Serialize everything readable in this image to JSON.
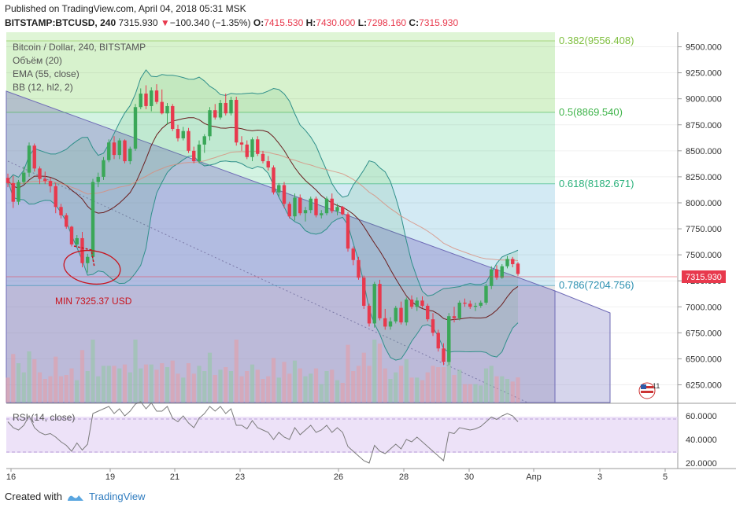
{
  "header": {
    "published": "Published on TradingView.com, April 04, 2018 05:31 MSK",
    "symbol": "BITSTAMP:BTCUSD, 240",
    "last": "7315.930",
    "arrow": "▼",
    "change": "−100.340 (−1.35%)",
    "o_label": "O:",
    "o": "7415.530",
    "h_label": "H:",
    "h": "7430.000",
    "l_label": "L:",
    "l": "7298.160",
    "c_label": "C:",
    "c": "7315.930"
  },
  "legend": [
    "Bitcoin / Dollar, 240, BITSTAMP",
    "Объём (20)",
    "EMA (55, close)",
    "BB (12, hl2, 2)"
  ],
  "rsi_label": "RSI (14, close)",
  "annotation": "MIN 7325.37 USD",
  "price_badge": "7315.930",
  "event_badge": "11",
  "footer": {
    "created_with": "Created with",
    "brand": "TradingView"
  },
  "colors": {
    "up": "#3aa758",
    "down": "#e8394d",
    "accent": "#2e7bbf"
  },
  "chart_data": [
    {
      "type": "candlestick",
      "title": "Bitcoin / Dollar, 240, BITSTAMP",
      "y_axis_ticks": [
        "9500.000",
        "9250.000",
        "9000.000",
        "8750.000",
        "8500.000",
        "8250.000",
        "8000.000",
        "7750.000",
        "7500.000",
        "7250.000",
        "7000.000",
        "6750.000",
        "6500.000",
        "6250.000"
      ],
      "x_axis_ticks": [
        "16",
        "19",
        "21",
        "23",
        "26",
        "28",
        "30",
        "Апр",
        "3",
        "5"
      ],
      "ylim": [
        6080,
        9640
      ],
      "fib_levels": [
        {
          "label": "0.382(9556.408)",
          "value": 9556.408
        },
        {
          "label": "0.5(8869.540)",
          "value": 8869.54
        },
        {
          "label": "0.618(8182.671)",
          "value": 8182.671
        },
        {
          "label": "0.786(7204.756)",
          "value": 7204.756
        }
      ],
      "candles": [
        [
          8240,
          8280,
          8150,
          8190
        ],
        [
          8190,
          8260,
          7950,
          8010
        ],
        [
          8010,
          8220,
          7980,
          8200
        ],
        [
          8200,
          8350,
          8180,
          8290
        ],
        [
          8290,
          8580,
          8250,
          8550
        ],
        [
          8550,
          8570,
          8300,
          8330
        ],
        [
          8330,
          8350,
          8180,
          8230
        ],
        [
          8230,
          8300,
          8180,
          8210
        ],
        [
          8210,
          8240,
          8100,
          8160
        ],
        [
          8160,
          8190,
          7900,
          7960
        ],
        [
          7960,
          7990,
          7850,
          7880
        ],
        [
          7880,
          7900,
          7750,
          7770
        ],
        [
          7770,
          7780,
          7580,
          7600
        ],
        [
          7600,
          7690,
          7580,
          7660
        ],
        [
          7660,
          7720,
          7380,
          7420
        ],
        [
          7420,
          7510,
          7330,
          7480
        ],
        [
          7480,
          8230,
          7450,
          8200
        ],
        [
          8200,
          8290,
          8150,
          8250
        ],
        [
          8250,
          8440,
          8220,
          8410
        ],
        [
          8410,
          8610,
          8390,
          8580
        ],
        [
          8580,
          8640,
          8420,
          8460
        ],
        [
          8460,
          8620,
          8420,
          8600
        ],
        [
          8600,
          8610,
          8380,
          8400
        ],
        [
          8400,
          8540,
          8370,
          8520
        ],
        [
          8520,
          8950,
          8500,
          8920
        ],
        [
          8920,
          9100,
          8900,
          9050
        ],
        [
          9050,
          9130,
          8900,
          8930
        ],
        [
          8930,
          9110,
          8880,
          9080
        ],
        [
          9080,
          9140,
          8950,
          8970
        ],
        [
          8970,
          9090,
          8850,
          8860
        ],
        [
          8860,
          8960,
          8750,
          8930
        ],
        [
          8930,
          8950,
          8690,
          8710
        ],
        [
          8710,
          8750,
          8590,
          8620
        ],
        [
          8620,
          8730,
          8600,
          8690
        ],
        [
          8690,
          8720,
          8480,
          8500
        ],
        [
          8500,
          8540,
          8380,
          8400
        ],
        [
          8400,
          8600,
          8380,
          8560
        ],
        [
          8560,
          8660,
          8480,
          8640
        ],
        [
          8640,
          8920,
          8600,
          8890
        ],
        [
          8890,
          8950,
          8800,
          8820
        ],
        [
          8820,
          8990,
          8800,
          8960
        ],
        [
          8960,
          9050,
          8840,
          8860
        ],
        [
          8860,
          9020,
          8840,
          8990
        ],
        [
          8990,
          9020,
          8550,
          8580
        ],
        [
          8580,
          8640,
          8500,
          8560
        ],
        [
          8560,
          8600,
          8420,
          8440
        ],
        [
          8440,
          8630,
          8400,
          8610
        ],
        [
          8610,
          8640,
          8450,
          8470
        ],
        [
          8470,
          8500,
          8380,
          8400
        ],
        [
          8400,
          8450,
          8310,
          8340
        ],
        [
          8340,
          8360,
          8080,
          8100
        ],
        [
          8100,
          8190,
          8060,
          8170
        ],
        [
          8170,
          8200,
          7950,
          7990
        ],
        [
          7990,
          8010,
          7850,
          7870
        ],
        [
          7870,
          8090,
          7830,
          8050
        ],
        [
          8050,
          8080,
          7880,
          7900
        ],
        [
          7900,
          7960,
          7820,
          7930
        ],
        [
          7930,
          8060,
          7900,
          8040
        ],
        [
          8040,
          8060,
          7860,
          7880
        ],
        [
          7880,
          7930,
          7850,
          7900
        ],
        [
          7900,
          8060,
          7880,
          8040
        ],
        [
          8040,
          8090,
          7900,
          7920
        ],
        [
          7920,
          7990,
          7880,
          7960
        ],
        [
          7960,
          7970,
          7880,
          7890
        ],
        [
          7890,
          7910,
          7530,
          7560
        ],
        [
          7560,
          7580,
          7400,
          7450
        ],
        [
          7450,
          7480,
          7260,
          7280
        ],
        [
          7280,
          7300,
          6980,
          7010
        ],
        [
          7010,
          7030,
          6810,
          6840
        ],
        [
          6840,
          7240,
          6800,
          7220
        ],
        [
          7220,
          7260,
          6870,
          6890
        ],
        [
          6890,
          6980,
          6780,
          6810
        ],
        [
          6810,
          6900,
          6780,
          6860
        ],
        [
          6860,
          7010,
          6840,
          6990
        ],
        [
          6990,
          7050,
          6830,
          6850
        ],
        [
          6850,
          7090,
          6820,
          7070
        ],
        [
          7070,
          7110,
          6980,
          7000
        ],
        [
          7000,
          7090,
          6960,
          7060
        ],
        [
          7060,
          7100,
          6990,
          7010
        ],
        [
          7010,
          7030,
          6860,
          6880
        ],
        [
          6880,
          6940,
          6720,
          6750
        ],
        [
          6750,
          6780,
          6570,
          6600
        ],
        [
          6600,
          6650,
          6440,
          6470
        ],
        [
          6470,
          6940,
          6440,
          6910
        ],
        [
          6910,
          7000,
          6850,
          6890
        ],
        [
          6890,
          7060,
          6870,
          7040
        ],
        [
          7040,
          7080,
          7000,
          7030
        ],
        [
          7030,
          7060,
          6980,
          7000
        ],
        [
          7000,
          7040,
          6960,
          7010
        ],
        [
          7010,
          7060,
          6990,
          7040
        ],
        [
          7040,
          7220,
          7020,
          7200
        ],
        [
          7200,
          7390,
          7170,
          7360
        ],
        [
          7360,
          7400,
          7260,
          7280
        ],
        [
          7280,
          7410,
          7270,
          7390
        ],
        [
          7390,
          7490,
          7370,
          7460
        ],
        [
          7460,
          7480,
          7380,
          7410
        ],
        [
          7415.53,
          7430,
          7298.16,
          7315.93
        ]
      ]
    },
    {
      "type": "bar",
      "title": "Объём (20)"
    },
    {
      "type": "line",
      "title": "RSI (14, close)",
      "y_axis_ticks": [
        "60.0000",
        "40.0000",
        "20.0000"
      ],
      "ylim": [
        16,
        70
      ],
      "values": [
        55,
        50,
        48,
        52,
        60,
        50,
        46,
        44,
        45,
        42,
        38,
        35,
        30,
        37,
        31,
        36,
        62,
        64,
        66,
        68,
        62,
        66,
        60,
        64,
        70,
        72,
        66,
        71,
        64,
        64,
        68,
        58,
        55,
        60,
        54,
        50,
        58,
        62,
        68,
        64,
        68,
        62,
        66,
        52,
        52,
        49,
        56,
        50,
        48,
        46,
        40,
        46,
        42,
        40,
        50,
        44,
        48,
        52,
        46,
        48,
        52,
        46,
        50,
        46,
        34,
        30,
        26,
        22,
        20,
        35,
        30,
        28,
        32,
        36,
        32,
        40,
        38,
        42,
        38,
        34,
        30,
        26,
        22,
        46,
        45,
        50,
        49,
        48,
        49,
        51,
        55,
        59,
        57,
        60,
        62,
        60,
        55
      ]
    }
  ]
}
